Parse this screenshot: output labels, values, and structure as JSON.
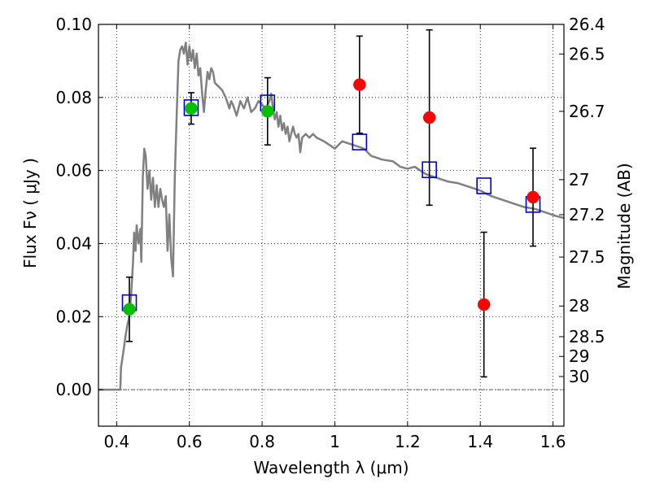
{
  "chart_data": {
    "type": "scatter",
    "title": "",
    "xlabel": "Wavelength  λ (μm)",
    "ylabel_left": "Flux  Fν  ( μJy )",
    "ylabel_right": "Magnitude (AB)",
    "xlim": [
      0.35,
      1.63
    ],
    "ylim": [
      -0.01,
      0.1
    ],
    "grid": true,
    "x_ticks": [
      {
        "value": 0.4,
        "label": "0.4"
      },
      {
        "value": 0.6,
        "label": "0.6"
      },
      {
        "value": 0.8,
        "label": "0.8"
      },
      {
        "value": 1.0,
        "label": "1"
      },
      {
        "value": 1.2,
        "label": "1.2"
      },
      {
        "value": 1.4,
        "label": "1.4"
      },
      {
        "value": 1.6,
        "label": "1.6"
      }
    ],
    "y_ticks": [
      {
        "value": 0.0,
        "label": "0.00"
      },
      {
        "value": 0.02,
        "label": "0.02"
      },
      {
        "value": 0.04,
        "label": "0.04"
      },
      {
        "value": 0.06,
        "label": "0.06"
      },
      {
        "value": 0.08,
        "label": "0.08"
      },
      {
        "value": 0.1,
        "label": "0.10"
      }
    ],
    "mag_ticks": [
      {
        "flux": 0.1,
        "label": "26.4"
      },
      {
        "flux": 0.0919,
        "label": "26.5"
      },
      {
        "flux": 0.0762,
        "label": "26.7"
      },
      {
        "flux": 0.0575,
        "label": "27"
      },
      {
        "flux": 0.0479,
        "label": "27.2"
      },
      {
        "flux": 0.0363,
        "label": "27.5"
      },
      {
        "flux": 0.0229,
        "label": "28"
      },
      {
        "flux": 0.0145,
        "label": "28.5"
      },
      {
        "flux": 0.0091,
        "label": "29"
      },
      {
        "flux": 0.0036,
        "label": "30"
      }
    ],
    "model_spectrum": {
      "color": "#808080",
      "points": [
        [
          0.35,
          0.0
        ],
        [
          0.4,
          0.0
        ],
        [
          0.41,
          0.0
        ],
        [
          0.412,
          0.006
        ],
        [
          0.418,
          0.01
        ],
        [
          0.425,
          0.015
        ],
        [
          0.43,
          0.018
        ],
        [
          0.435,
          0.02
        ],
        [
          0.44,
          0.026
        ],
        [
          0.445,
          0.035
        ],
        [
          0.448,
          0.043
        ],
        [
          0.452,
          0.038
        ],
        [
          0.455,
          0.045
        ],
        [
          0.46,
          0.04
        ],
        [
          0.465,
          0.044
        ],
        [
          0.468,
          0.035
        ],
        [
          0.472,
          0.058
        ],
        [
          0.476,
          0.066
        ],
        [
          0.48,
          0.064
        ],
        [
          0.485,
          0.055
        ],
        [
          0.49,
          0.06
        ],
        [
          0.495,
          0.052
        ],
        [
          0.5,
          0.058
        ],
        [
          0.505,
          0.05
        ],
        [
          0.51,
          0.056
        ],
        [
          0.515,
          0.05
        ],
        [
          0.52,
          0.055
        ],
        [
          0.525,
          0.052
        ],
        [
          0.53,
          0.05
        ],
        [
          0.535,
          0.053
        ],
        [
          0.54,
          0.038
        ],
        [
          0.545,
          0.048
        ],
        [
          0.55,
          0.036
        ],
        [
          0.555,
          0.031
        ],
        [
          0.56,
          0.058
        ],
        [
          0.565,
          0.075
        ],
        [
          0.57,
          0.09
        ],
        [
          0.575,
          0.093
        ],
        [
          0.58,
          0.094
        ],
        [
          0.585,
          0.092
        ],
        [
          0.59,
          0.095
        ],
        [
          0.595,
          0.089
        ],
        [
          0.6,
          0.094
        ],
        [
          0.605,
          0.09
        ],
        [
          0.61,
          0.093
        ],
        [
          0.615,
          0.088
        ],
        [
          0.62,
          0.092
        ],
        [
          0.625,
          0.086
        ],
        [
          0.63,
          0.088
        ],
        [
          0.635,
          0.081
        ],
        [
          0.64,
          0.076
        ],
        [
          0.645,
          0.082
        ],
        [
          0.65,
          0.087
        ],
        [
          0.655,
          0.085
        ],
        [
          0.66,
          0.088
        ],
        [
          0.665,
          0.087
        ],
        [
          0.67,
          0.084
        ],
        [
          0.68,
          0.083
        ],
        [
          0.69,
          0.082
        ],
        [
          0.7,
          0.08
        ],
        [
          0.71,
          0.077
        ],
        [
          0.715,
          0.079
        ],
        [
          0.72,
          0.078
        ],
        [
          0.73,
          0.075
        ],
        [
          0.74,
          0.079
        ],
        [
          0.75,
          0.077
        ],
        [
          0.76,
          0.08
        ],
        [
          0.77,
          0.076
        ],
        [
          0.78,
          0.077
        ],
        [
          0.79,
          0.079
        ],
        [
          0.8,
          0.078
        ],
        [
          0.81,
          0.077
        ],
        [
          0.82,
          0.079
        ],
        [
          0.825,
          0.081
        ],
        [
          0.83,
          0.077
        ],
        [
          0.835,
          0.074
        ],
        [
          0.84,
          0.076
        ],
        [
          0.845,
          0.072
        ],
        [
          0.85,
          0.075
        ],
        [
          0.855,
          0.071
        ],
        [
          0.86,
          0.073
        ],
        [
          0.865,
          0.07
        ],
        [
          0.87,
          0.072
        ],
        [
          0.875,
          0.068
        ],
        [
          0.88,
          0.07
        ],
        [
          0.885,
          0.072
        ],
        [
          0.89,
          0.07
        ],
        [
          0.895,
          0.069
        ],
        [
          0.9,
          0.07
        ],
        [
          0.905,
          0.065
        ],
        [
          0.91,
          0.069
        ],
        [
          0.92,
          0.07
        ],
        [
          0.93,
          0.069
        ],
        [
          0.94,
          0.07
        ],
        [
          0.95,
          0.069
        ],
        [
          0.97,
          0.068
        ],
        [
          1.0,
          0.066
        ],
        [
          1.02,
          0.068
        ],
        [
          1.05,
          0.067
        ],
        [
          1.08,
          0.066
        ],
        [
          1.1,
          0.064
        ],
        [
          1.13,
          0.063
        ],
        [
          1.16,
          0.0625
        ],
        [
          1.18,
          0.061
        ],
        [
          1.2,
          0.0605
        ],
        [
          1.22,
          0.061
        ],
        [
          1.25,
          0.059
        ],
        [
          1.28,
          0.058
        ],
        [
          1.31,
          0.057
        ],
        [
          1.34,
          0.0565
        ],
        [
          1.37,
          0.0555
        ],
        [
          1.4,
          0.0545
        ],
        [
          1.43,
          0.053
        ],
        [
          1.46,
          0.052
        ],
        [
          1.49,
          0.051
        ],
        [
          1.52,
          0.05
        ],
        [
          1.55,
          0.0495
        ],
        [
          1.58,
          0.0485
        ],
        [
          1.61,
          0.0475
        ],
        [
          1.63,
          0.047
        ]
      ]
    },
    "model_bands": {
      "marker": "open-square",
      "color": "#0000cc",
      "points": [
        [
          0.435,
          0.0238
        ],
        [
          0.605,
          0.0772
        ],
        [
          0.815,
          0.0785
        ],
        [
          1.068,
          0.0678
        ],
        [
          1.26,
          0.0602
        ],
        [
          1.41,
          0.0558
        ],
        [
          1.545,
          0.0507
        ]
      ]
    },
    "detections": {
      "marker": "filled-circle",
      "color": "#00c000",
      "points": [
        {
          "x": 0.435,
          "y": 0.022,
          "err": 0.0088
        },
        {
          "x": 0.605,
          "y": 0.077,
          "err": 0.0043
        },
        {
          "x": 0.815,
          "y": 0.0762,
          "err": 0.0092
        }
      ]
    },
    "non_detections": {
      "marker": "filled-circle",
      "color": "#ff0000",
      "points": [
        {
          "x": 1.068,
          "y": 0.0835,
          "err": 0.0133
        },
        {
          "x": 1.26,
          "y": 0.0745,
          "err": 0.024
        },
        {
          "x": 1.41,
          "y": 0.0233,
          "err": 0.0198
        },
        {
          "x": 1.545,
          "y": 0.0527,
          "err": 0.0134
        }
      ]
    }
  }
}
